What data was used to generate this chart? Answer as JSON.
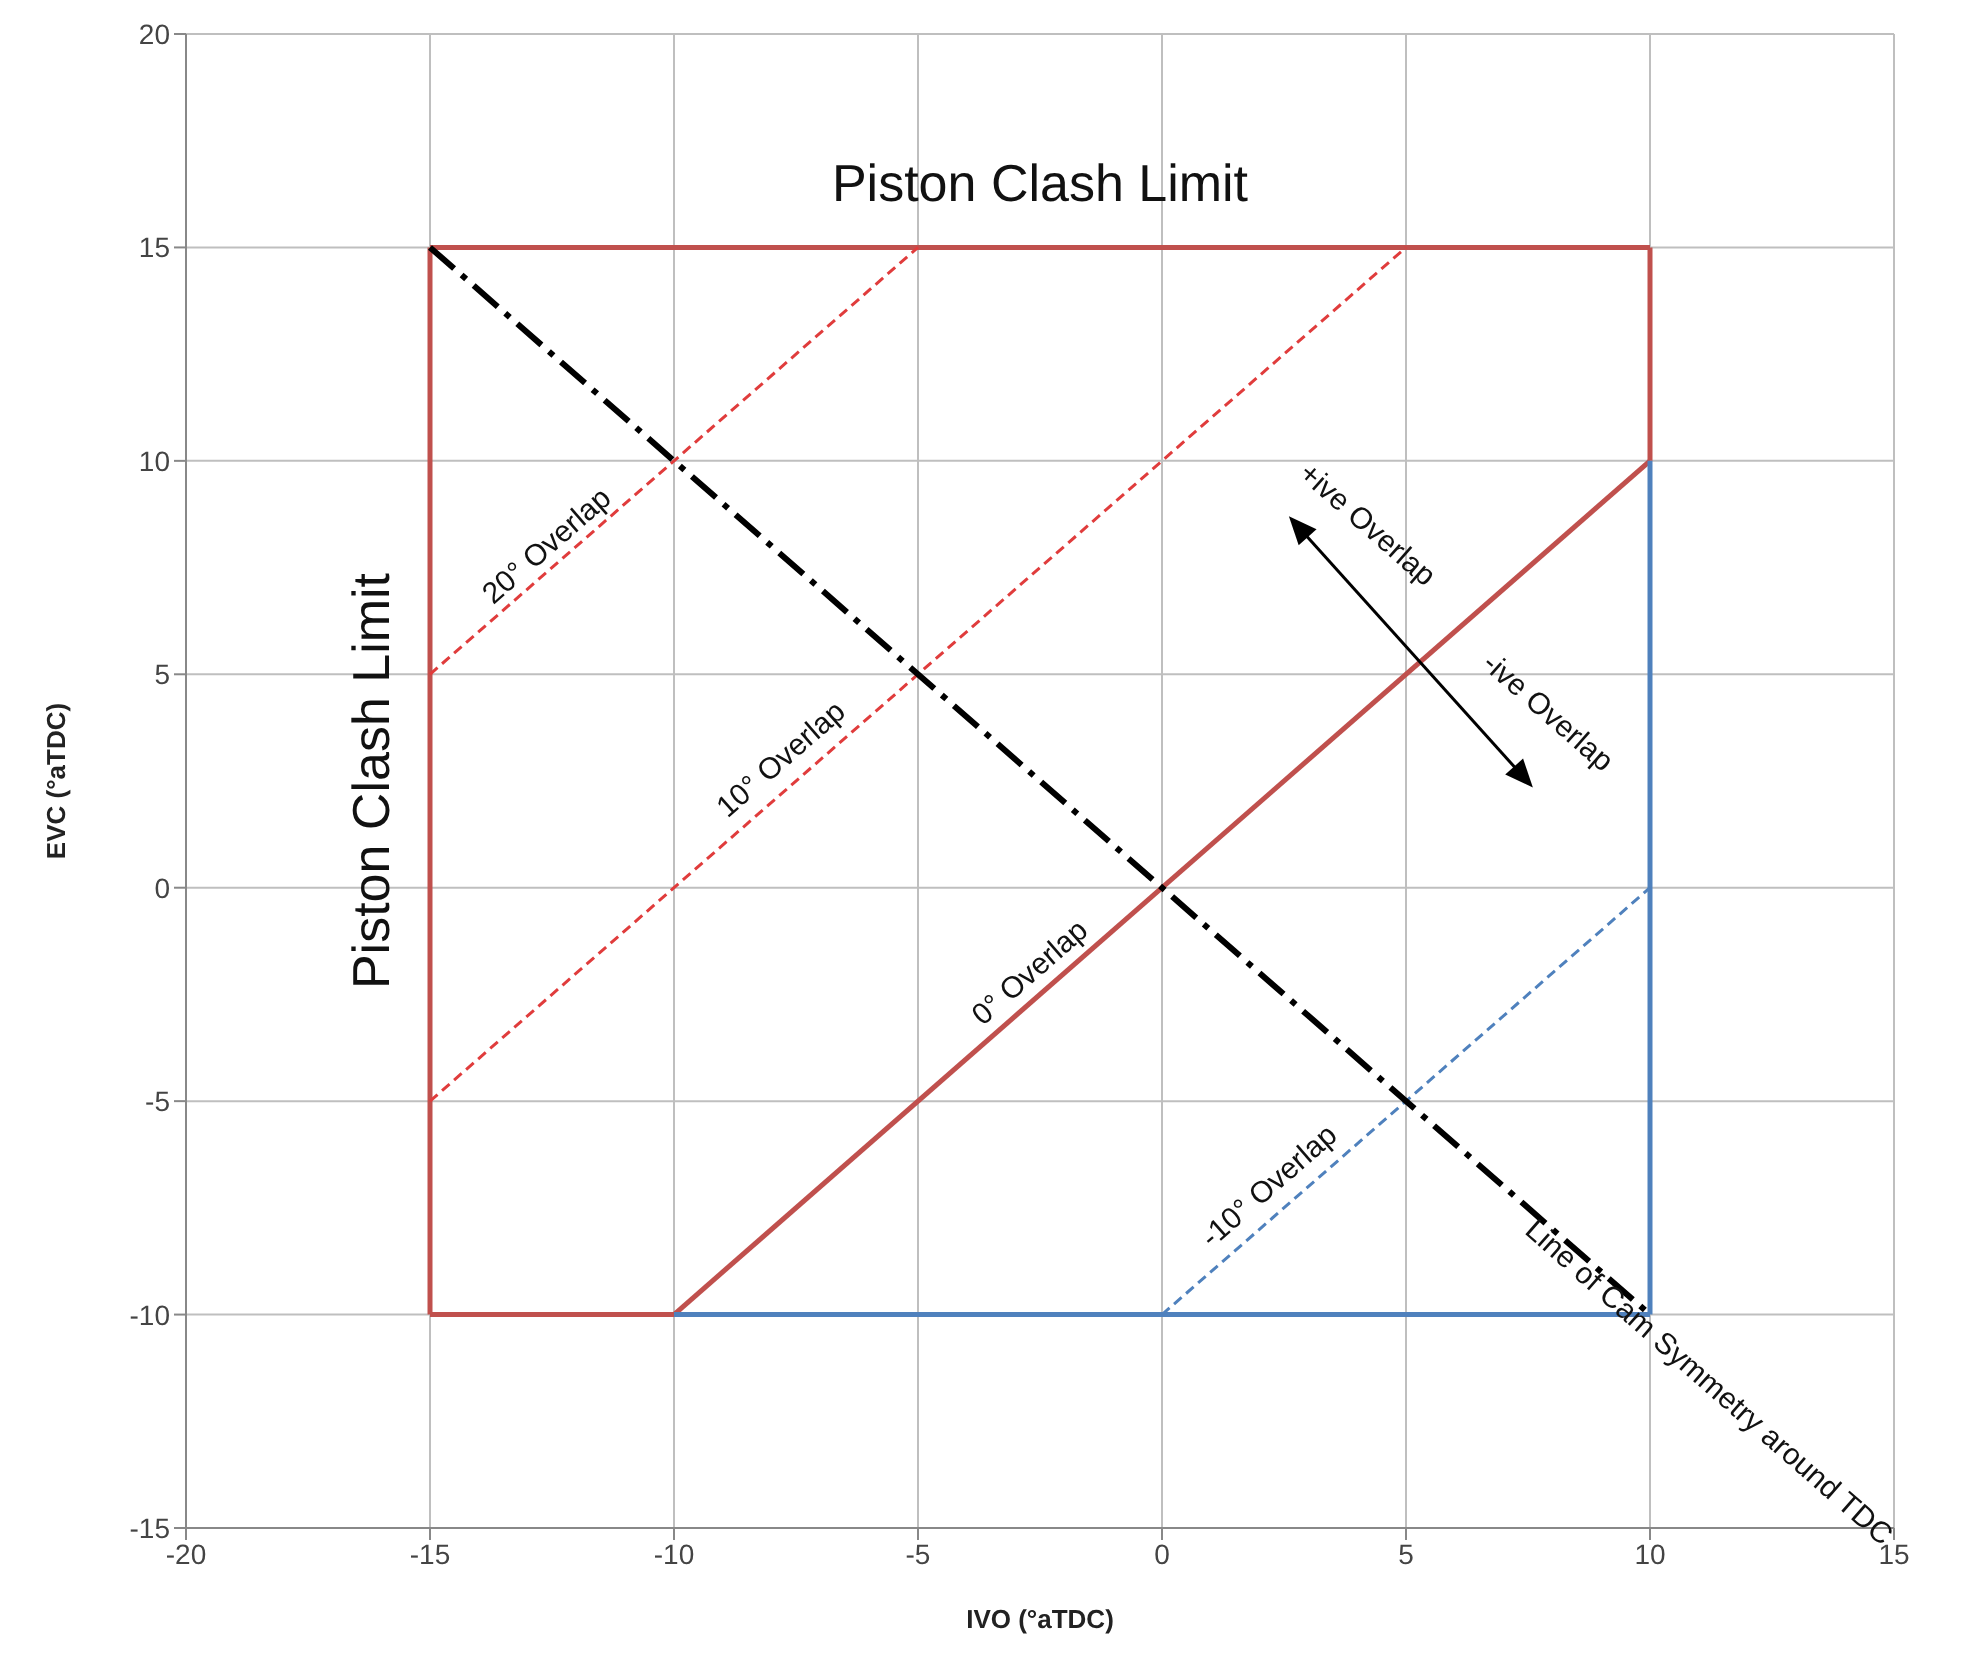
{
  "chart_data": {
    "type": "line",
    "xlabel": "IVO (°aTDC)",
    "ylabel": "EVC (°aTDC)",
    "xlim": [
      -20,
      15
    ],
    "xticks": [
      -20,
      -15,
      -10,
      -5,
      0,
      5,
      10,
      15
    ],
    "ylim": [
      -15,
      20
    ],
    "yticks": [
      -15,
      -10,
      -5,
      0,
      5,
      10,
      15,
      20
    ],
    "grid": true,
    "marker": "none",
    "series": [
      {
        "color": "#c0504d",
        "x": [
          -15,
          -10
        ],
        "values": [
          -10,
          -10
        ],
        "line_style": "solid"
      },
      {
        "color": "#c0504d",
        "x": [
          -15,
          -15
        ],
        "values": [
          -10,
          15
        ],
        "line_style": "solid"
      },
      {
        "color": "#c0504d",
        "x": [
          -15,
          10
        ],
        "values": [
          15,
          15
        ],
        "line_style": "solid"
      },
      {
        "color": "#c0504d",
        "x": [
          10,
          10
        ],
        "values": [
          10,
          15
        ],
        "line_style": "solid"
      },
      {
        "color": "#c0504d",
        "x": [
          -10,
          10
        ],
        "values": [
          -10,
          10
        ],
        "line_style": "solid"
      },
      {
        "color": "#4f81bd",
        "x": [
          -10,
          10
        ],
        "values": [
          -10,
          -10
        ],
        "line_style": "solid"
      },
      {
        "color": "#4f81bd",
        "x": [
          10,
          10
        ],
        "values": [
          -10,
          10
        ],
        "line_style": "solid"
      },
      {
        "color": "#e03c3c",
        "x": [
          -15,
          -5
        ],
        "values": [
          5,
          15
        ],
        "line_style": "dashed"
      },
      {
        "color": "#e03c3c",
        "x": [
          -15,
          5
        ],
        "values": [
          -5,
          15
        ],
        "line_style": "dashed"
      },
      {
        "color": "#4f81bd",
        "x": [
          0,
          10
        ],
        "values": [
          -10,
          0
        ],
        "line_style": "dashed"
      },
      {
        "color": "#000000",
        "x": [
          -15,
          10
        ],
        "values": [
          15,
          -10
        ],
        "line_style": "dashed"
      }
    ],
    "annotations": [
      "Piston Clash Limit",
      "Piston Clash Limit",
      "20° Overlap",
      "10° Overlap",
      "0° Overlap",
      "-10° Overlap",
      "+ive Overlap",
      "-ive Overlap",
      "Line of Cam Symmetry around TDC"
    ]
  }
}
